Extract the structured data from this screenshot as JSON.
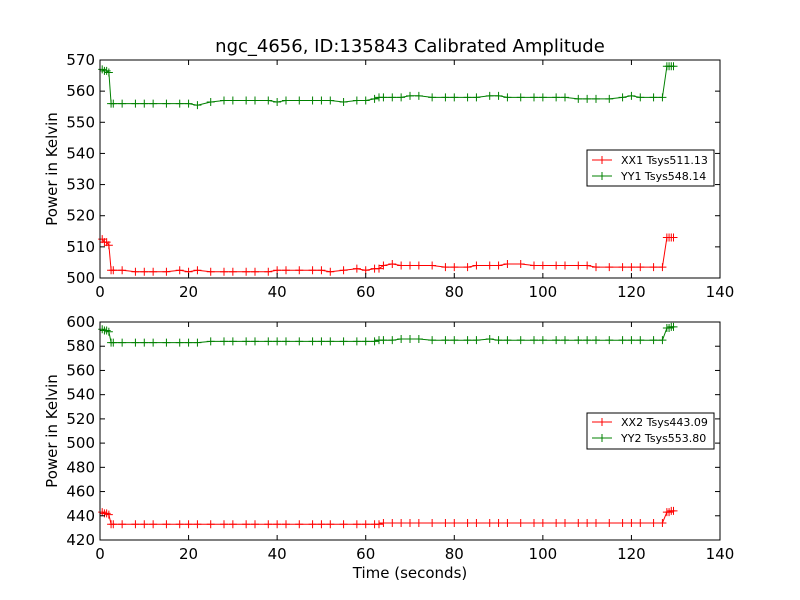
{
  "figure": {
    "title": "ngc_4656, ID:135843 Calibrated Amplitude",
    "xlabel": "Time (seconds)"
  },
  "chart_data": [
    {
      "type": "line",
      "title": "ngc_4656, ID:135843 Calibrated Amplitude",
      "xlabel": "",
      "ylabel": "Power in Kelvin",
      "xlim": [
        0,
        140
      ],
      "ylim": [
        500,
        570
      ],
      "xticks": [
        0,
        20,
        40,
        60,
        80,
        100,
        120,
        140
      ],
      "yticks": [
        500,
        510,
        520,
        530,
        540,
        550,
        560,
        570
      ],
      "grid": false,
      "legend_position": "right",
      "marker": "+",
      "series": [
        {
          "name": "XX1 Tsys511.13",
          "color": "#ff0000",
          "x": [
            0.5,
            1.0,
            1.5,
            2.0,
            2.5,
            3,
            5,
            8,
            10,
            12,
            15,
            18,
            20,
            22,
            25,
            28,
            30,
            33,
            35,
            38,
            40,
            42,
            45,
            48,
            50,
            52,
            55,
            58,
            60,
            62,
            63,
            64,
            66,
            68,
            70,
            72,
            75,
            78,
            80,
            83,
            85,
            88,
            90,
            92,
            95,
            98,
            100,
            103,
            105,
            108,
            110,
            112,
            115,
            118,
            120,
            122,
            125,
            127,
            128,
            128.5,
            129,
            129.5
          ],
          "y": [
            512.5,
            511.5,
            511.5,
            510.5,
            502.5,
            502.5,
            502.5,
            502.0,
            502.0,
            502.0,
            502.0,
            502.5,
            502.0,
            502.5,
            502.0,
            502.0,
            502.0,
            502.0,
            502.0,
            502.0,
            502.5,
            502.5,
            502.5,
            502.5,
            502.5,
            502.0,
            502.5,
            503.0,
            502.5,
            503.0,
            503.0,
            504.0,
            504.5,
            504.0,
            504.0,
            504.0,
            504.0,
            503.5,
            503.5,
            503.5,
            504.0,
            504.0,
            504.0,
            504.5,
            504.5,
            504.0,
            504.0,
            504.0,
            504.0,
            504.0,
            504.0,
            503.5,
            503.5,
            503.5,
            503.5,
            503.5,
            503.5,
            503.5,
            513.0,
            513.0,
            513.0,
            513.0
          ]
        },
        {
          "name": "YY1 Tsys548.14",
          "color": "#008000",
          "x": [
            0.5,
            1.0,
            1.5,
            2.0,
            2.5,
            3,
            5,
            8,
            10,
            12,
            15,
            18,
            20,
            22,
            25,
            28,
            30,
            33,
            35,
            38,
            40,
            42,
            45,
            48,
            50,
            52,
            55,
            58,
            60,
            62,
            63,
            64,
            66,
            68,
            70,
            72,
            75,
            78,
            80,
            83,
            85,
            88,
            90,
            92,
            95,
            98,
            100,
            103,
            105,
            108,
            110,
            112,
            115,
            118,
            120,
            122,
            125,
            127,
            128,
            128.5,
            129,
            129.5
          ],
          "y": [
            567.0,
            566.5,
            566.5,
            566.0,
            556.0,
            556.0,
            556.0,
            556.0,
            556.0,
            556.0,
            556.0,
            556.0,
            556.0,
            555.5,
            556.5,
            557.0,
            557.0,
            557.0,
            557.0,
            557.0,
            556.5,
            557.0,
            557.0,
            557.0,
            557.0,
            557.0,
            556.5,
            557.0,
            557.0,
            557.5,
            558.0,
            558.0,
            558.0,
            558.0,
            558.5,
            558.5,
            558.0,
            558.0,
            558.0,
            558.0,
            558.0,
            558.5,
            558.5,
            558.0,
            558.0,
            558.0,
            558.0,
            558.0,
            558.0,
            557.5,
            557.5,
            557.5,
            557.5,
            558.0,
            558.5,
            558.0,
            558.0,
            558.0,
            568.0,
            568.0,
            568.0,
            568.0
          ]
        }
      ]
    },
    {
      "type": "line",
      "title": "",
      "xlabel": "Time (seconds)",
      "ylabel": "Power in Kelvin",
      "xlim": [
        0,
        140
      ],
      "ylim": [
        420,
        600
      ],
      "xticks": [
        0,
        20,
        40,
        60,
        80,
        100,
        120,
        140
      ],
      "yticks": [
        420,
        440,
        460,
        480,
        500,
        520,
        540,
        560,
        580,
        600
      ],
      "grid": false,
      "legend_position": "right",
      "marker": "+",
      "series": [
        {
          "name": "XX2 Tsys443.09",
          "color": "#ff0000",
          "x": [
            0.5,
            1.0,
            1.5,
            2.0,
            2.5,
            3,
            5,
            8,
            10,
            12,
            15,
            18,
            20,
            22,
            25,
            28,
            30,
            33,
            35,
            38,
            40,
            42,
            45,
            48,
            50,
            52,
            55,
            58,
            60,
            62,
            63,
            64,
            66,
            68,
            70,
            72,
            75,
            78,
            80,
            83,
            85,
            88,
            90,
            92,
            95,
            98,
            100,
            103,
            105,
            108,
            110,
            112,
            115,
            118,
            120,
            122,
            125,
            127,
            128,
            128.5,
            129,
            129.5
          ],
          "y": [
            443,
            442,
            442,
            441,
            433,
            433,
            433,
            433,
            433,
            433,
            433,
            433,
            433,
            433,
            433,
            433,
            433,
            433,
            433,
            433,
            433,
            433,
            433,
            433,
            433,
            433,
            433,
            433,
            433,
            433,
            433,
            434,
            434,
            434,
            434,
            434,
            434,
            434,
            434,
            434,
            434,
            434,
            434,
            434,
            434,
            434,
            434,
            434,
            434,
            434,
            434,
            434,
            434,
            434,
            434,
            434,
            434,
            434,
            443,
            443,
            444,
            444
          ]
        },
        {
          "name": "YY2 Tsys553.80",
          "color": "#008000",
          "x": [
            0.5,
            1.0,
            1.5,
            2.0,
            2.5,
            3,
            5,
            8,
            10,
            12,
            15,
            18,
            20,
            22,
            25,
            28,
            30,
            33,
            35,
            38,
            40,
            42,
            45,
            48,
            50,
            52,
            55,
            58,
            60,
            62,
            63,
            64,
            66,
            68,
            70,
            72,
            75,
            78,
            80,
            83,
            85,
            88,
            90,
            92,
            95,
            98,
            100,
            103,
            105,
            108,
            110,
            112,
            115,
            118,
            120,
            122,
            125,
            127,
            128,
            128.5,
            129,
            129.5
          ],
          "y": [
            594,
            593,
            593,
            592,
            583,
            583,
            583,
            583,
            583,
            583,
            583,
            583,
            583,
            583,
            584,
            584,
            584,
            584,
            584,
            584,
            584,
            584,
            584,
            584,
            584,
            584,
            584,
            584,
            584,
            584,
            585,
            585,
            585,
            586,
            586,
            586,
            585,
            585,
            585,
            585,
            585,
            586,
            585,
            585,
            585,
            585,
            585,
            585,
            585,
            585,
            585,
            585,
            585,
            585,
            585,
            585,
            585,
            585,
            595,
            595,
            596,
            596
          ]
        }
      ]
    }
  ]
}
